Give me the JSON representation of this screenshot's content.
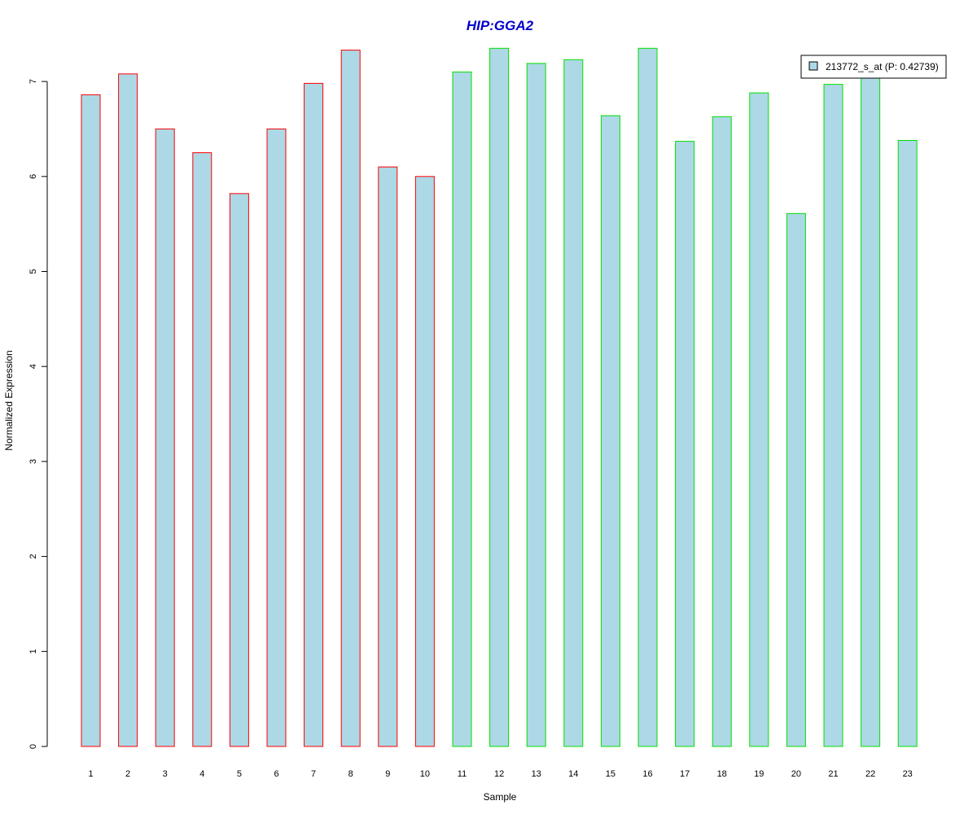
{
  "chart_data": {
    "type": "bar",
    "title": "HIP:GGA2",
    "xlabel": "Sample",
    "ylabel": "Normalized Expression",
    "categories": [
      "1",
      "2",
      "3",
      "4",
      "5",
      "6",
      "7",
      "8",
      "9",
      "10",
      "11",
      "12",
      "13",
      "14",
      "15",
      "16",
      "17",
      "18",
      "19",
      "20",
      "21",
      "22",
      "23"
    ],
    "series": [
      {
        "name": "213772_s_at (P: 0.42739)",
        "values": [
          6.86,
          7.08,
          6.5,
          6.25,
          5.82,
          6.5,
          6.98,
          7.33,
          6.1,
          6.0,
          7.1,
          7.35,
          7.19,
          7.23,
          6.64,
          7.35,
          6.37,
          6.63,
          6.88,
          5.61,
          6.97,
          7.05,
          6.38
        ]
      }
    ],
    "ylim": [
      0,
      7.0
    ],
    "yticks": [
      0,
      1,
      2,
      3,
      4,
      5,
      6,
      7
    ],
    "grid": false,
    "legend": "top-right",
    "groups": [
      {
        "samples": [
          1,
          2,
          3,
          4,
          5,
          6,
          7,
          8,
          9,
          10
        ],
        "border_color": "#ff0000"
      },
      {
        "samples": [
          11,
          12,
          13,
          14,
          15,
          16,
          17,
          18,
          19,
          20,
          21,
          22,
          23
        ],
        "border_color": "#00e000"
      }
    ],
    "colors": {
      "bar_fill": "#add8e6",
      "title": "#0000cd"
    }
  }
}
